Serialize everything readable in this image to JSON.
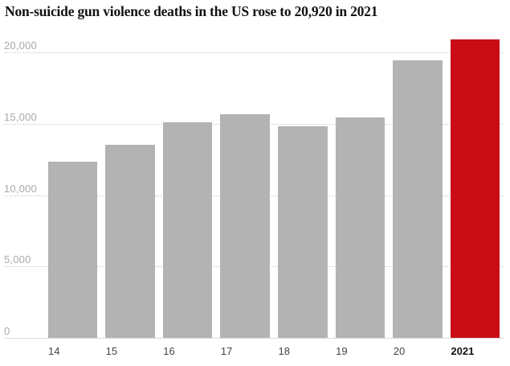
{
  "title": "Non-suicide gun violence deaths in the US rose to 20,920 in 2021",
  "colors": {
    "title_text": "#121212",
    "bar_default": "#b3b3b4",
    "bar_highlight": "#c90c15",
    "y_label": "#a9a9a9",
    "x_label": "#444444",
    "x_label_highlight": "#121212",
    "gridline": "#c9c9c9",
    "axis_line": "#d9d9d9",
    "background": "#ffffff"
  },
  "chart_data": {
    "type": "bar",
    "title": "Non-suicide gun violence deaths in the US rose to 20,920 in 2021",
    "categories": [
      "14",
      "15",
      "16",
      "17",
      "18",
      "19",
      "20",
      "2021"
    ],
    "values": [
      12355,
      13537,
      15112,
      15679,
      14789,
      15448,
      19411,
      20920
    ],
    "highlight_index": 7,
    "highlight_category": "2021",
    "highlight_value": 20920,
    "xlabel": "",
    "ylabel": "",
    "ylim": [
      0,
      21000
    ],
    "yticks": [
      {
        "value": 0,
        "label": "0"
      },
      {
        "value": 5000,
        "label": "5,000"
      },
      {
        "value": 10000,
        "label": "10,000"
      },
      {
        "value": 15000,
        "label": "15,000"
      },
      {
        "value": 20000,
        "label": "20,000"
      }
    ],
    "grid": "horizontal-dotted",
    "legend": "none",
    "orientation": "vertical"
  }
}
